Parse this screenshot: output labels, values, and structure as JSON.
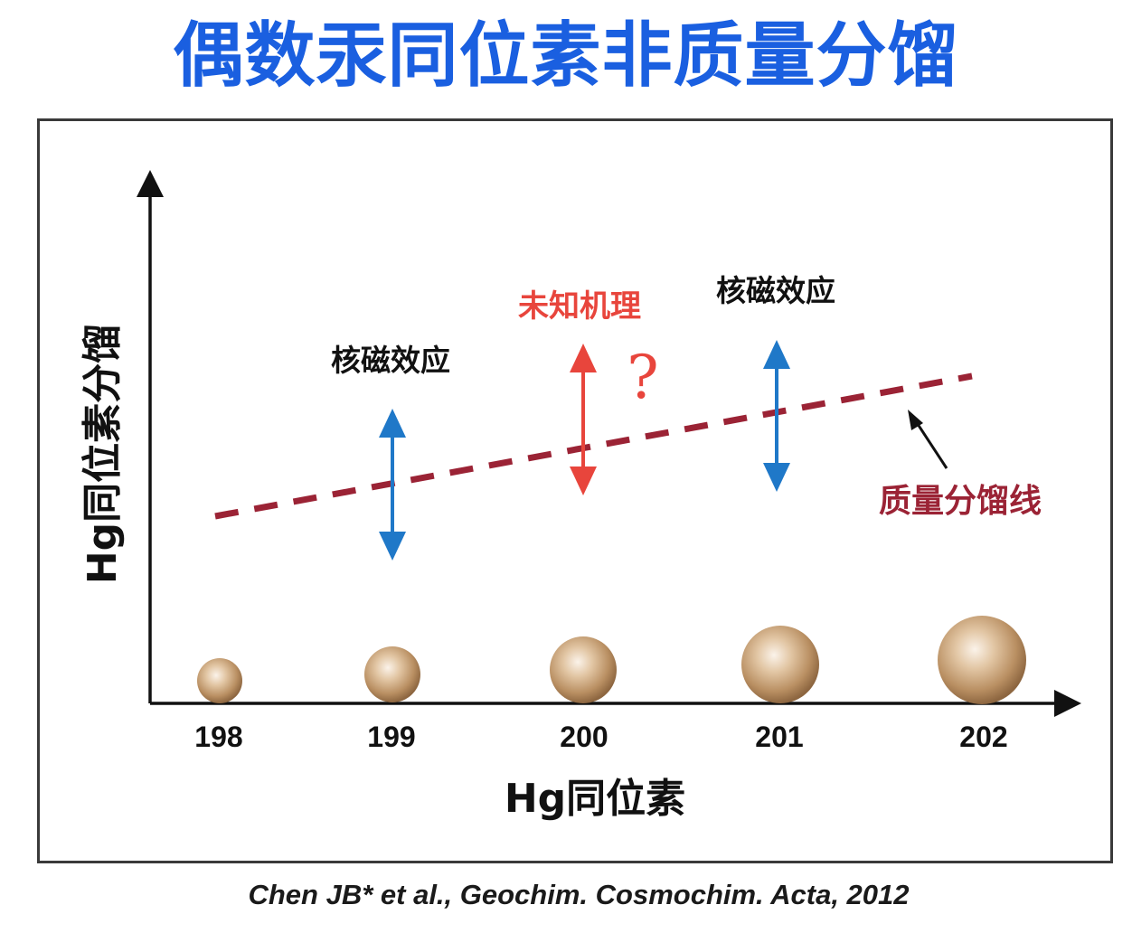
{
  "title": "偶数汞同位素非质量分馏",
  "diagram": {
    "y_axis_label": "Hg同位素分馏",
    "x_axis_label": "Hg同位素",
    "isotopes": [
      "198",
      "199",
      "200",
      "201",
      "202"
    ],
    "annotations": {
      "effect_199": "核磁效应",
      "effect_200": "未知机理",
      "question_mark": "?",
      "effect_201": "核磁效应",
      "mass_line_label": "质量分馏线"
    },
    "colors": {
      "title": "#1a5fe0",
      "blue_arrow": "#1f78c8",
      "red_arrow": "#e8453c",
      "mass_line": "#9b2335",
      "sphere": "#b98f62"
    }
  },
  "citation": "Chen JB* et al., Geochim. Cosmochim. Acta,  2012"
}
